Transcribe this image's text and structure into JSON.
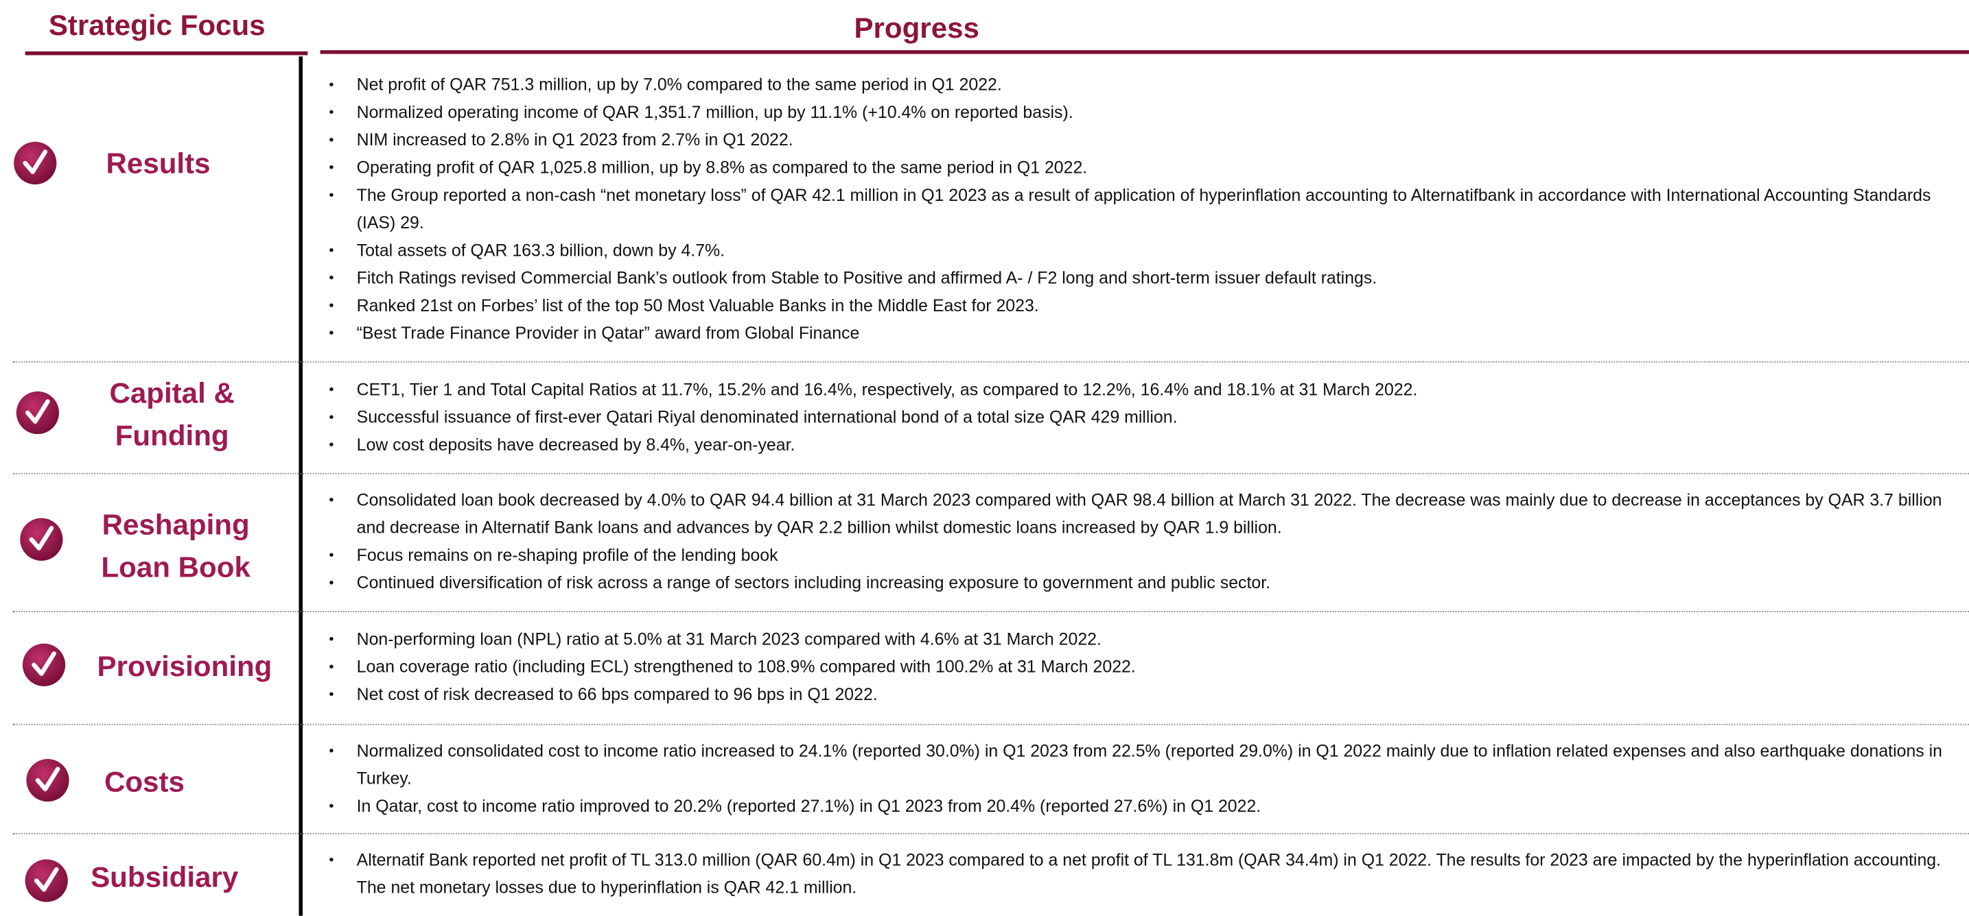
{
  "header": {
    "focus_title": "Strategic Focus",
    "progress_title": "Progress"
  },
  "rows": [
    {
      "focus": [
        "Results"
      ],
      "bullets": [
        "Net profit of QAR 751.3 million, up by 7.0% compared to the same period in Q1 2022.",
        "Normalized operating income of QAR 1,351.7 million, up by 11.1% (+10.4% on reported basis).",
        "NIM increased to 2.8% in Q1 2023 from 2.7% in Q1 2022.",
        "Operating profit of QAR 1,025.8 million, up by 8.8% as compared to the same period in Q1 2022.",
        "The Group reported a non-cash “net monetary loss” of QAR 42.1 million in Q1 2023 as a result of application of hyperinflation accounting to Alternatifbank in accordance with International Accounting Standards (IAS) 29.",
        "Total assets of QAR 163.3 billion, down by 4.7%.",
        "Fitch Ratings revised Commercial Bank’s outlook from Stable to Positive and affirmed A- / F2 long and short-term issuer default ratings.",
        "Ranked 21st on Forbes’ list of the top 50 Most Valuable Banks in the Middle East for 2023.",
        "“Best Trade Finance Provider in Qatar” award from Global Finance"
      ]
    },
    {
      "focus": [
        "Capital &",
        "Funding"
      ],
      "bullets": [
        "CET1, Tier 1 and Total Capital Ratios at 11.7%, 15.2% and 16.4%, respectively, as compared to 12.2%, 16.4% and 18.1% at 31 March 2022.",
        "Successful issuance of first-ever Qatari Riyal denominated international bond of a total size QAR 429 million.",
        "Low cost deposits have decreased by 8.4%, year-on-year."
      ]
    },
    {
      "focus": [
        "Reshaping",
        "Loan Book"
      ],
      "bullets": [
        "Consolidated loan book decreased by 4.0% to QAR 94.4 billion at 31 March 2023 compared with QAR 98.4 billion at March 31 2022.  The decrease was mainly due to decrease in acceptances by QAR 3.7 billion and decrease in Alternatif Bank loans and advances by QAR 2.2 billion whilst domestic loans increased by QAR 1.9 billion.",
        "Focus remains on re-shaping profile of the lending book",
        "Continued diversification of risk across a range of sectors including increasing exposure to government and public sector."
      ]
    },
    {
      "focus": [
        "Provisioning"
      ],
      "bullets": [
        "Non-performing loan (NPL) ratio at 5.0% at 31 March 2023 compared with 4.6% at 31 March 2022.",
        "Loan coverage ratio (including ECL) strengthened to 108.9% compared with 100.2% at 31 March 2022.",
        "Net cost of risk decreased to 66 bps compared to 96 bps in Q1 2022."
      ]
    },
    {
      "focus": [
        "Costs"
      ],
      "bullets": [
        "Normalized consolidated cost to income ratio increased to 24.1% (reported 30.0%) in Q1 2023 from 22.5% (reported 29.0%) in Q1 2022 mainly due to inflation related expenses and also earthquake donations in Turkey.",
        "In Qatar, cost to income ratio improved to 20.2% (reported 27.1%) in Q1 2023 from 20.4% (reported 27.6%) in Q1 2022."
      ]
    },
    {
      "focus": [
        "Subsidiary"
      ],
      "bullets": [
        "Alternatif Bank reported net profit of TL 313.0 million (QAR 60.4m) in Q1 2023 compared to a net profit of TL 131.8m (QAR 34.4m) in Q1 2022. The results for 2023 are impacted by the hyperinflation accounting. The net monetary losses due to hyperinflation is QAR 42.1 million."
      ]
    }
  ]
}
